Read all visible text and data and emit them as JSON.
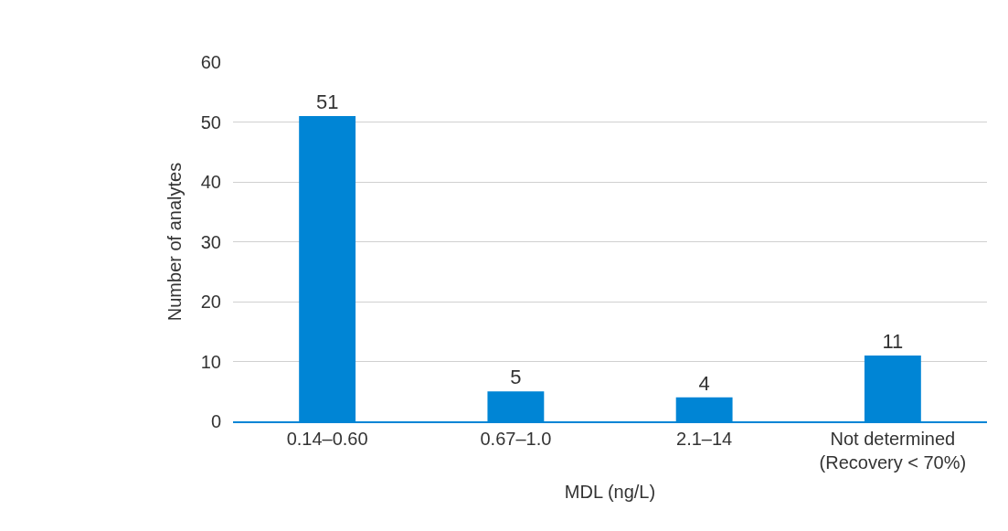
{
  "chart_data": {
    "type": "bar",
    "categories": [
      "0.14–0.60",
      "0.67–1.0",
      "2.1–14",
      "Not determined\n(Recovery < 70%)"
    ],
    "values": [
      51,
      5,
      4,
      11
    ],
    "color": "#0085d5",
    "xlabel": "MDL (ng/L)",
    "ylabel": "Number of analytes",
    "ylim": [
      0,
      60
    ],
    "yticks": [
      0,
      10,
      20,
      30,
      40,
      50,
      60
    ],
    "grid": "y",
    "data_labels": true
  }
}
